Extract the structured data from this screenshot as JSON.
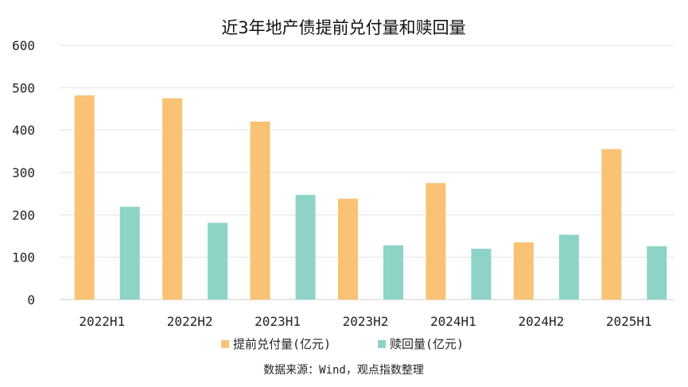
{
  "chart_data": {
    "type": "bar",
    "title": "近3年地产债提前兑付量和赎回量",
    "categories": [
      "2022H1",
      "2022H2",
      "2023H1",
      "2023H2",
      "2024H1",
      "2024H2",
      "2025H1"
    ],
    "series": [
      {
        "name": "提前兑付量(亿元)",
        "color": "#F9C274",
        "values": [
          482,
          475,
          420,
          238,
          275,
          135,
          355
        ]
      },
      {
        "name": "赎回量(亿元)",
        "color": "#8ED4C6",
        "values": [
          219,
          181,
          247,
          128,
          120,
          153,
          126
        ]
      }
    ],
    "ylim": [
      0,
      600
    ],
    "yticks": [
      0,
      100,
      200,
      300,
      400,
      500,
      600
    ],
    "grid": true,
    "legend": "bottom",
    "xlabel": "",
    "ylabel": ""
  },
  "source": "数据来源：Wind，观点指数整理"
}
